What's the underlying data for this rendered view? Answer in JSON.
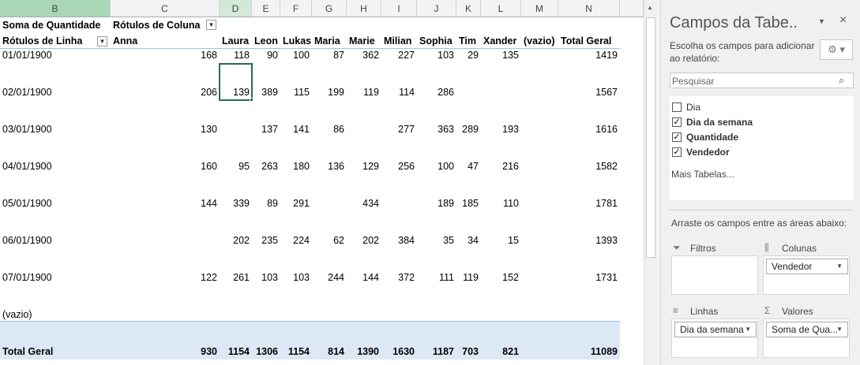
{
  "sheet": {
    "column_letters": [
      "B",
      "C",
      "D",
      "E",
      "F",
      "G",
      "H",
      "I",
      "J",
      "K",
      "L",
      "M",
      "N"
    ],
    "selected_letter": "D",
    "pivot": {
      "value_field": "Soma de Quantidade",
      "column_field": "Rótulos de Coluna",
      "row_field": "Rótulos de Linha",
      "column_headers": [
        "Anna",
        "Laura",
        "Leon",
        "Lukas",
        "Maria",
        "Marie",
        "Milian",
        "Sophia",
        "Tim",
        "Xander",
        "(vazio)",
        "Total Geral"
      ],
      "rows": [
        {
          "label": "01/01/1900",
          "values": [
            168,
            118,
            90,
            100,
            87,
            362,
            227,
            103,
            29,
            135,
            null,
            1419
          ]
        },
        {
          "label": "02/01/1900",
          "values": [
            206,
            139,
            389,
            115,
            199,
            119,
            114,
            286,
            null,
            null,
            null,
            1567
          ]
        },
        {
          "label": "03/01/1900",
          "values": [
            130,
            null,
            137,
            141,
            86,
            null,
            277,
            363,
            289,
            193,
            null,
            1616
          ]
        },
        {
          "label": "04/01/1900",
          "values": [
            160,
            95,
            263,
            180,
            136,
            129,
            256,
            100,
            47,
            216,
            null,
            1582
          ]
        },
        {
          "label": "05/01/1900",
          "values": [
            144,
            339,
            89,
            291,
            null,
            434,
            null,
            189,
            185,
            110,
            null,
            1781
          ]
        },
        {
          "label": "06/01/1900",
          "values": [
            null,
            202,
            235,
            224,
            62,
            202,
            384,
            35,
            34,
            15,
            null,
            1393
          ]
        },
        {
          "label": "07/01/1900",
          "values": [
            122,
            261,
            103,
            103,
            244,
            144,
            372,
            111,
            119,
            152,
            null,
            1731
          ]
        },
        {
          "label": "(vazio)",
          "values": [
            null,
            null,
            null,
            null,
            null,
            null,
            null,
            null,
            null,
            null,
            null,
            null
          ]
        }
      ],
      "total": {
        "label": "Total Geral",
        "values": [
          930,
          1154,
          1306,
          1154,
          814,
          1390,
          1630,
          1187,
          703,
          821,
          null,
          11089
        ]
      }
    }
  },
  "panel": {
    "title": "Campos da Tabe..",
    "instructions": "Escolha os campos para adicionar ao relatório:",
    "search_placeholder": "Pesquisar",
    "fields": [
      {
        "name": "Dia",
        "checked": false
      },
      {
        "name": "Dia da semana",
        "checked": true
      },
      {
        "name": "Quantidade",
        "checked": true
      },
      {
        "name": "Vendedor",
        "checked": true
      }
    ],
    "more_tables": "Mais Tabelas...",
    "drag_hint": "Arraste os campos entre as áreas abaixo:",
    "areas": [
      {
        "label": "Filtros",
        "item": null
      },
      {
        "label": "Colunas",
        "item": "Vendedor"
      },
      {
        "label": "Linhas",
        "item": "Dia da semana"
      },
      {
        "label": "Valores",
        "item": "Soma de Qua..."
      }
    ]
  }
}
